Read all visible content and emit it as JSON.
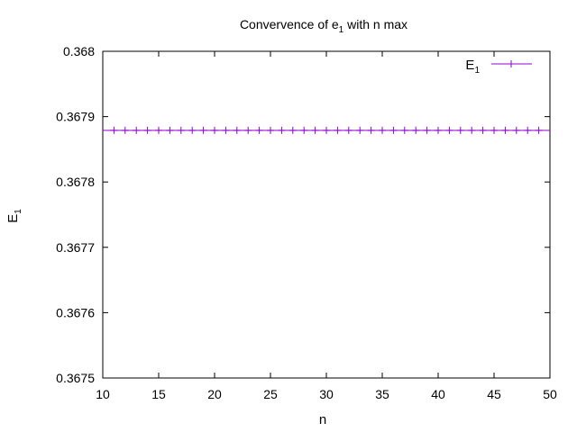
{
  "chart_data": {
    "type": "line",
    "title": "Convervence of e",
    "title_subscript": "1",
    "title_suffix": " with n max",
    "xlabel": "n",
    "ylabel": "E",
    "ylabel_subscript": "1",
    "xlim": [
      10,
      50
    ],
    "ylim": [
      0.3675,
      0.368
    ],
    "xticks": [
      10,
      15,
      20,
      25,
      30,
      35,
      40,
      45,
      50
    ],
    "xtick_labels": [
      "10",
      "15",
      "20",
      "25",
      "30",
      "35",
      "40",
      "45",
      "50"
    ],
    "yticks": [
      0.3675,
      0.3676,
      0.3677,
      0.3678,
      0.3679,
      0.368
    ],
    "ytick_labels": [
      "0.3675",
      "0.3676",
      "0.3677",
      "0.3678",
      "0.3679",
      "0.368"
    ],
    "grid": false,
    "legend_position": "top-right",
    "series": [
      {
        "name": "E",
        "name_subscript": "1",
        "color": "#9400d3",
        "marker": "plus",
        "x": [
          11,
          12,
          13,
          14,
          15,
          16,
          17,
          18,
          19,
          20,
          21,
          22,
          23,
          24,
          25,
          26,
          27,
          28,
          29,
          30,
          31,
          32,
          33,
          34,
          35,
          36,
          37,
          38,
          39,
          40,
          41,
          42,
          43,
          44,
          45,
          46,
          47,
          48,
          49
        ],
        "y": [
          0.367879,
          0.367879,
          0.367879,
          0.367879,
          0.367879,
          0.367879,
          0.367879,
          0.367879,
          0.367879,
          0.367879,
          0.367879,
          0.367879,
          0.367879,
          0.367879,
          0.367879,
          0.367879,
          0.367879,
          0.367879,
          0.367879,
          0.367879,
          0.367879,
          0.367879,
          0.367879,
          0.367879,
          0.367879,
          0.367879,
          0.367879,
          0.367879,
          0.367879,
          0.367879,
          0.367879,
          0.367879,
          0.367879,
          0.367879,
          0.367879,
          0.367879,
          0.367879,
          0.367879,
          0.367879
        ]
      }
    ]
  }
}
